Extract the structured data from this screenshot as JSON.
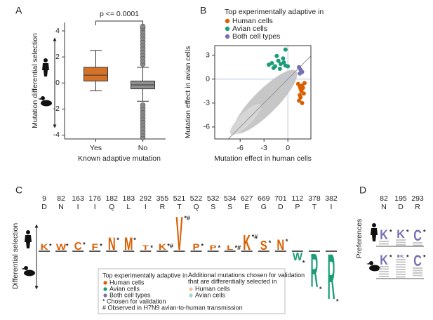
{
  "chart_data": [
    {
      "type": "box",
      "panel_label": "A",
      "annotation": "p <= 0.0001",
      "xlabel": "Known adaptive mutation",
      "ylabel": "Mutation differential selection",
      "categories": [
        "Yes",
        "No"
      ],
      "colors": [
        "#d4722a",
        "#8f8f8f"
      ],
      "ylim": [
        -4.3,
        4.65
      ],
      "yticks": [
        -4,
        -2,
        0,
        2,
        4
      ],
      "boxes": [
        {
          "whisker_low": -0.6,
          "q1": 0.15,
          "median": 0.6,
          "q3": 1.2,
          "whisker_high": 2.5,
          "outliers": []
        },
        {
          "whisker_low": -1.4,
          "q1": -0.45,
          "median": -0.15,
          "q3": 0.15,
          "whisker_high": 1.2,
          "outliers": [
            -4.2,
            -3.95,
            -3.7,
            -3.45,
            -3.2,
            -2.95,
            -2.7,
            -2.45,
            -2.2,
            -1.95,
            -1.7,
            1.45,
            1.7,
            1.95,
            2.2,
            2.45,
            2.7,
            2.95,
            3.2,
            3.45,
            3.7,
            3.95,
            4.2,
            4.35
          ]
        }
      ]
    },
    {
      "type": "scatter",
      "panel_label": "B",
      "legend_title": "Top experimentally adaptive in",
      "xlabel": "Mutation effect in human cells",
      "ylabel": "Mutation effect in avian cells",
      "xlim": [
        -9.2,
        2.9
      ],
      "ylim": [
        -7.5,
        4.2
      ],
      "xticks": [
        -6,
        -3,
        0
      ],
      "yticks": [
        -6,
        -3,
        0,
        3
      ],
      "series": [
        {
          "name": "Human cells",
          "color": "#d95f02",
          "x": [
            1.3,
            1.5,
            1.6,
            1.7,
            1.8,
            1.9,
            2.0,
            1.6,
            1.4,
            1.8,
            2.1,
            1.5
          ],
          "values": [
            -0.6,
            -0.9,
            -1.2,
            -1.5,
            -0.8,
            -1.1,
            -1.8,
            -2.3,
            -2.7,
            -3.0,
            -0.5,
            -2.0
          ]
        },
        {
          "name": "Avian cells",
          "color": "#1b9e77",
          "x": [
            -2.4,
            -2.0,
            -1.6,
            -1.2,
            -0.9,
            -0.6,
            -0.3,
            -1.8,
            -1.0,
            -0.5,
            0.0,
            -1.4,
            -0.3
          ],
          "values": [
            1.8,
            2.0,
            1.6,
            2.3,
            1.9,
            2.6,
            1.7,
            1.4,
            1.3,
            2.1,
            1.6,
            2.9,
            3.7
          ]
        },
        {
          "name": "Both cell types",
          "color": "#7570b3",
          "x": [
            1.4,
            1.6,
            1.8,
            1.5
          ],
          "values": [
            1.5,
            1.2,
            0.9,
            0.7
          ]
        }
      ]
    },
    {
      "type": "logo",
      "panel_label": "C",
      "ylabel": "Differential selection",
      "sites": [
        "9",
        "82",
        "163",
        "176",
        "182",
        "183",
        "292",
        "355",
        "521",
        "522",
        "532",
        "534",
        "627",
        "669",
        "701",
        "112",
        "378",
        "382"
      ],
      "wildtype": [
        "D",
        "N",
        "I",
        "I",
        "Q",
        "L",
        "I",
        "R",
        "T",
        "Q",
        "S",
        "S",
        "E",
        "G",
        "D",
        "P",
        "T",
        "I"
      ],
      "letters": [
        "K",
        "W",
        "C",
        "F",
        "N",
        "M",
        "T",
        "K",
        "V",
        "P",
        "P",
        "L",
        "K",
        "S",
        "N",
        "W",
        "R",
        "R"
      ],
      "values": [
        0.4,
        0.4,
        0.5,
        0.4,
        0.8,
        0.8,
        0.3,
        0.4,
        2.2,
        0.4,
        0.3,
        0.3,
        1.0,
        0.6,
        0.7,
        -0.5,
        -2.2,
        -3.0
      ],
      "colors": [
        "#d95f02",
        "#d95f02",
        "#d95f02",
        "#d95f02",
        "#d95f02",
        "#d95f02",
        "#d95f02",
        "#d95f02",
        "#d95f02",
        "#d95f02",
        "#d95f02",
        "#d95f02",
        "#d95f02",
        "#d95f02",
        "#d95f02",
        "#1b9e77",
        "#1b9e77",
        "#1b9e77"
      ],
      "notes": [
        "*",
        "*",
        "*",
        "*",
        "*",
        "*",
        "*",
        "*#",
        "*#",
        "*",
        "*",
        "*#",
        "*#",
        "*",
        "*",
        "*",
        "*",
        "*"
      ],
      "legend": {
        "title": "Top experimentally adaptive in",
        "entries": [
          {
            "name": "Human cells",
            "color": "#d95f02"
          },
          {
            "name": "Avian cells",
            "color": "#1b9e77"
          },
          {
            "name": "Both cell types",
            "color": "#7570b3"
          }
        ],
        "symbols": [
          "* Chosen for validation",
          "# Observed in H7N9 avian-to-human transmission"
        ],
        "additional_title": "Additional mutations chosen for validation that are differentially selected in",
        "additional_entries": [
          {
            "name": "Human cells",
            "color": "#f2c29b"
          },
          {
            "name": "Avian cells",
            "color": "#9fd8c3"
          }
        ]
      }
    },
    {
      "type": "preference_logo",
      "panel_label": "D",
      "ylabel": "Preferences",
      "sites": [
        "82",
        "195",
        "293"
      ],
      "wildtype": [
        "N",
        "D",
        "R"
      ],
      "color": "#7570b3",
      "rows": [
        {
          "letters": [
            "K",
            "K",
            "C"
          ],
          "values": [
            0.35,
            0.3,
            0.4
          ],
          "notes": [
            "*",
            "*",
            "*"
          ]
        },
        {
          "letters": [
            "K",
            "K",
            "C"
          ],
          "values": [
            0.35,
            0.1,
            0.4
          ],
          "notes": [
            "*",
            "*",
            "*"
          ]
        }
      ]
    }
  ]
}
